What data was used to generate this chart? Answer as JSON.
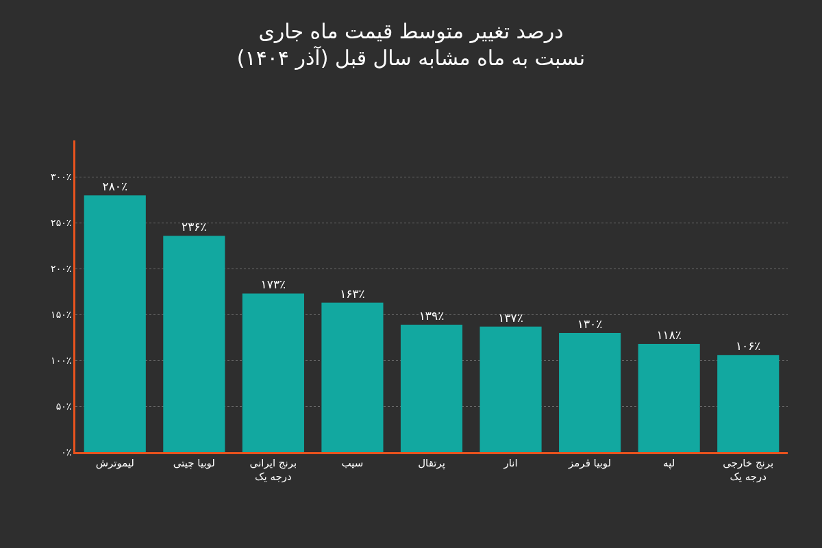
{
  "chart_data": {
    "type": "bar",
    "title": "درصد تغییر متوسط قیمت ماه جاری\nنسبت به ماه مشابه سال قبل (آذر ۱۴۰۴)",
    "categories": [
      "لیموترش",
      "لوبیا چیتی",
      "برنج ایرانی\nدرجه یک",
      "سیب",
      "پرتقال",
      "انار",
      "لوبیا قرمز",
      "لپه",
      "برنج خارجی\nدرجه یک"
    ],
    "values": [
      280,
      236,
      173,
      163,
      139,
      137,
      130,
      118,
      106
    ],
    "value_labels": [
      "۲۸۰٪",
      "۲۳۶٪",
      "۱۷۳٪",
      "۱۶۳٪",
      "۱۳۹٪",
      "۱۳۷٪",
      "۱۳۰٪",
      "۱۱۸٪",
      "۱۰۶٪"
    ],
    "color": "#12a8a0",
    "ylim": [
      0,
      340
    ],
    "yticks": [
      {
        "value": 0,
        "label": "۰٪"
      },
      {
        "value": 50,
        "label": "۵۰٪"
      },
      {
        "value": 100,
        "label": "۱۰۰٪"
      },
      {
        "value": 150,
        "label": "۱۵۰٪"
      },
      {
        "value": 200,
        "label": "۲۰۰٪"
      },
      {
        "value": 250,
        "label": "۲۵۰٪"
      },
      {
        "value": 300,
        "label": "۳۰۰٪"
      }
    ],
    "grid": "y"
  }
}
